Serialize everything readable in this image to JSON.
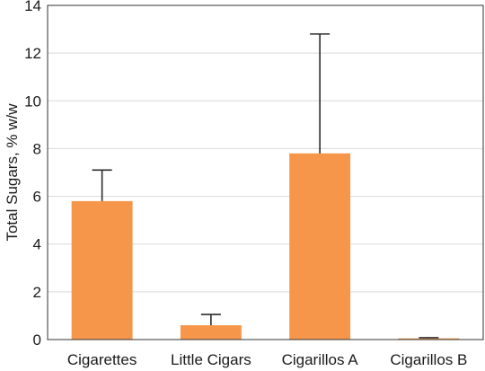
{
  "chart_data": {
    "type": "bar",
    "categories": [
      "Cigarettes",
      "Little Cigars",
      "Cigarillos A",
      "Cigarillos B"
    ],
    "values": [
      5.8,
      0.6,
      7.8,
      0.05
    ],
    "error_upper": [
      7.1,
      1.05,
      12.8,
      0.08
    ],
    "ylabel": "Total Sugars, % w/w",
    "xlabel": "",
    "ylim": [
      0,
      14
    ],
    "yticks": [
      0,
      2,
      4,
      6,
      8,
      10,
      12,
      14
    ],
    "grid": true,
    "bar_color": "#f5964a"
  }
}
